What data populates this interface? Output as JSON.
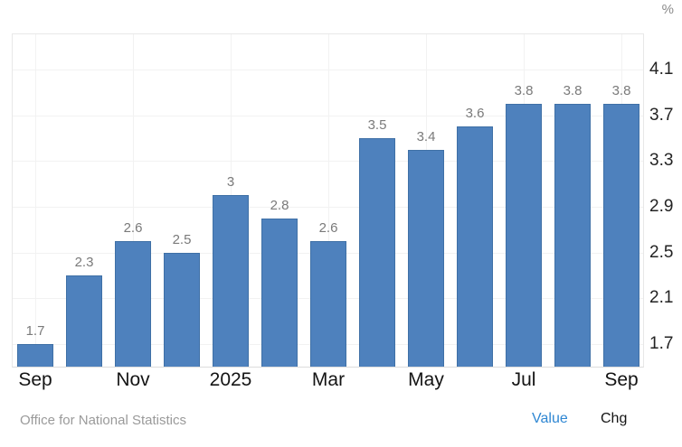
{
  "chart_data": {
    "type": "bar",
    "title": "",
    "unit": "%",
    "values": [
      1.7,
      2.3,
      2.6,
      2.5,
      3,
      2.8,
      2.6,
      3.5,
      3.4,
      3.6,
      3.8,
      3.8,
      3.8
    ],
    "bar_labels": [
      "1.7",
      "2.3",
      "2.6",
      "2.5",
      "3",
      "2.8",
      "2.6",
      "3.5",
      "3.4",
      "3.6",
      "3.8",
      "3.8",
      "3.8"
    ],
    "x_tick_labels": [
      "Sep",
      "Nov",
      "2025",
      "Mar",
      "May",
      "Jul",
      "Sep"
    ],
    "x_tick_bar_indices": [
      0,
      2,
      4,
      6,
      8,
      10,
      12
    ],
    "y_ticks": [
      1.7,
      2.1,
      2.5,
      2.9,
      3.3,
      3.7,
      4.1
    ],
    "ylim": [
      1.5,
      4.41
    ],
    "grid": "on",
    "legend_position": "none",
    "bar_color": "#4e81bd",
    "bar_border_color": "#3f70a6"
  },
  "footer": {
    "source_label": "Office for National Statistics",
    "value_label": "Value",
    "chg_label": "Chg",
    "value_color": "#2f87d3"
  }
}
